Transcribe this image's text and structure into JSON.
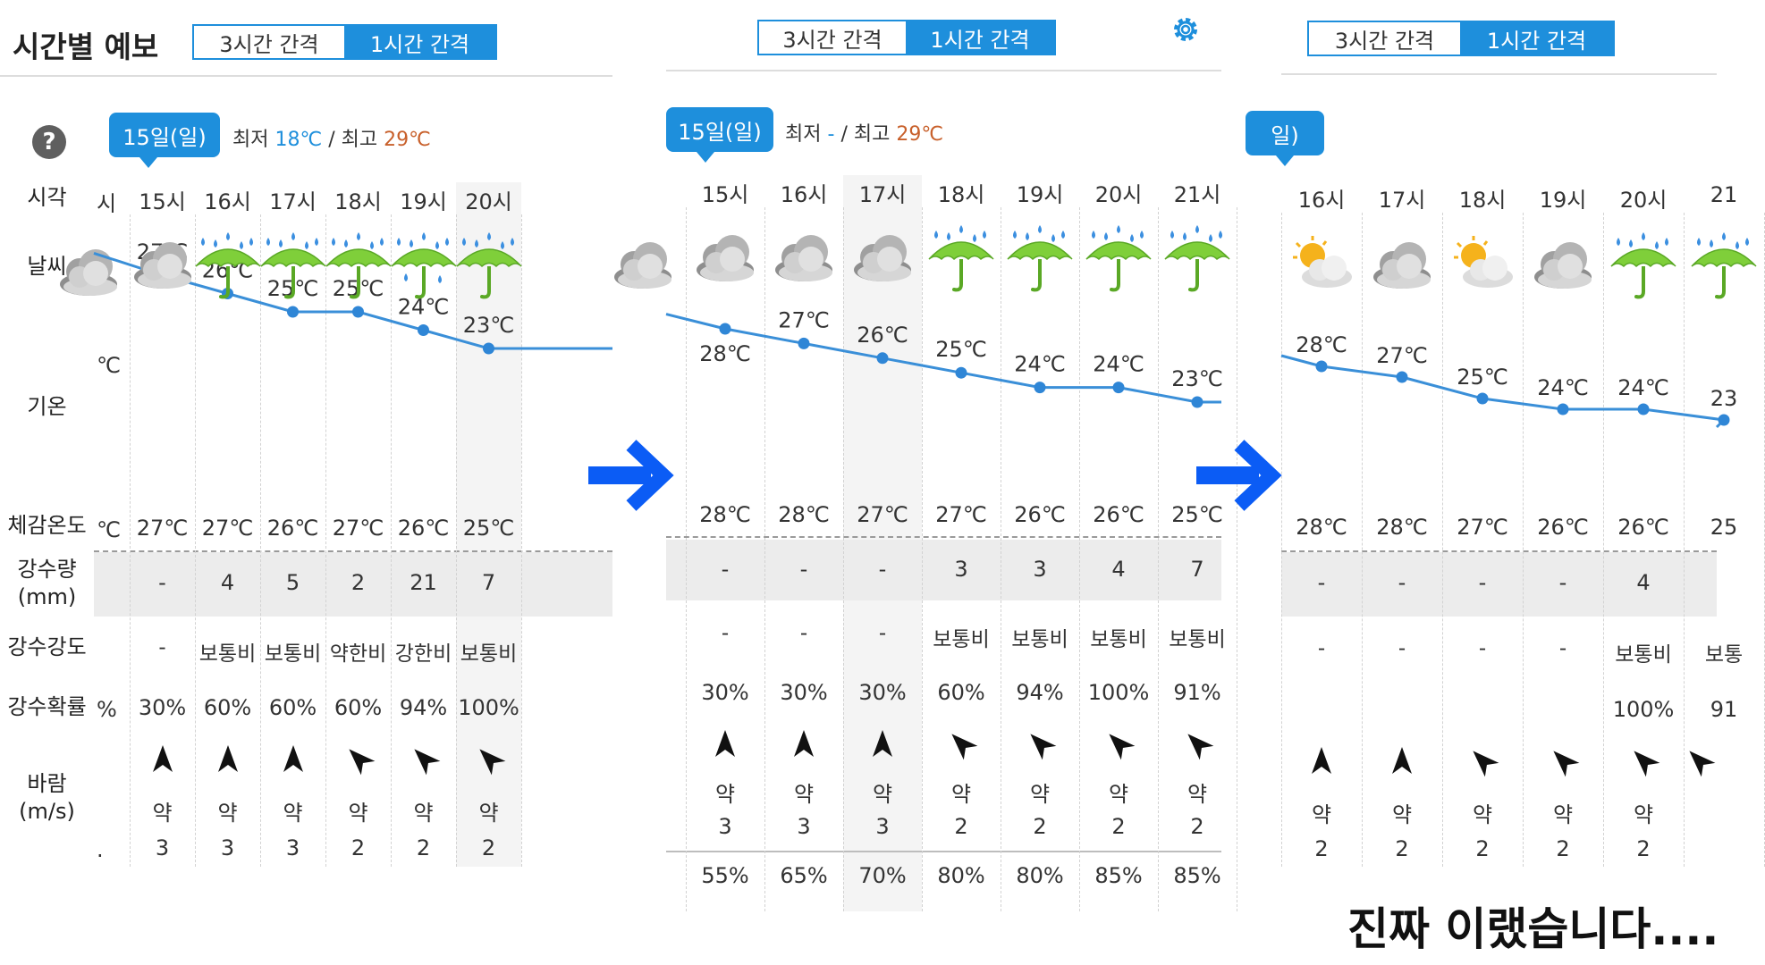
{
  "title": "시간별 예보",
  "segments": {
    "three_hour": "3시간 간격",
    "one_hour": "1시간 간격"
  },
  "labels": {
    "time": "시각",
    "weather": "날씨",
    "temperature": "기온",
    "feels_like": "체감온도",
    "precip_amount": "강수량",
    "precip_unit": "(mm)",
    "precip_intensity": "강수강도",
    "precip_probability": "강수확률",
    "wind": "바람",
    "wind_unit": "(m/s)",
    "min": "최저",
    "max": "최고",
    "slash": "/"
  },
  "caption": "진짜 이랬습니다....",
  "colors": {
    "accent": "#1e8fdc",
    "hi_temp": "#c8602b",
    "arrow": "#0b5cf5"
  },
  "panels": [
    {
      "date": "15일(일)",
      "min_temp": "18℃",
      "max_temp": "29℃",
      "edge": {
        "time": "시",
        "temp": "℃",
        "feels": "℃",
        "prob": "%",
        "wind_speed": "."
      },
      "columns": [
        {
          "time": "15시",
          "icon": "cloudy-icon",
          "temp": 27,
          "temp_label": "27℃",
          "feels": "27℃",
          "amount": "-",
          "intensity": "-",
          "prob": "30%",
          "wind_dir": "N",
          "wind_word": "약",
          "wind_speed": "3"
        },
        {
          "time": "16시",
          "icon": "rain-umbrella-icon",
          "temp": 26,
          "temp_label": "26℃",
          "feels": "27℃",
          "amount": "4",
          "intensity": "보통비",
          "prob": "60%",
          "wind_dir": "N",
          "wind_word": "약",
          "wind_speed": "3"
        },
        {
          "time": "17시",
          "icon": "rain-umbrella-icon",
          "temp": 25,
          "temp_label": "25℃",
          "feels": "26℃",
          "amount": "5",
          "intensity": "보통비",
          "prob": "60%",
          "wind_dir": "N",
          "wind_word": "약",
          "wind_speed": "3"
        },
        {
          "time": "18시",
          "icon": "rain-umbrella-icon",
          "temp": 25,
          "temp_label": "25℃",
          "feels": "27℃",
          "amount": "2",
          "intensity": "약한비",
          "prob": "60%",
          "wind_dir": "NW",
          "wind_word": "약",
          "wind_speed": "2"
        },
        {
          "time": "19시",
          "icon": "heavy-rain-umbrella-icon",
          "temp": 24,
          "temp_label": "24℃",
          "feels": "26℃",
          "amount": "21",
          "intensity": "강한비",
          "prob": "94%",
          "wind_dir": "NW",
          "wind_word": "약",
          "wind_speed": "2"
        },
        {
          "time": "20시",
          "icon": "rain-umbrella-icon",
          "temp": 23,
          "temp_label": "23℃",
          "feels": "25℃",
          "amount": "7",
          "intensity": "보통비",
          "prob": "100%",
          "wind_dir": "NW",
          "wind_word": "약",
          "wind_speed": "2"
        }
      ]
    },
    {
      "date": "15일(일)",
      "min_temp": "-",
      "max_temp": "29℃",
      "columns": [
        {
          "time": "15시",
          "icon": "cloudy-icon",
          "temp": 28,
          "temp_label": "28℃",
          "feels": "28℃",
          "amount": "-",
          "intensity": "-",
          "prob": "30%",
          "wind_dir": "N",
          "wind_word": "약",
          "wind_speed": "3",
          "humidity": "55%"
        },
        {
          "time": "16시",
          "icon": "cloudy-icon",
          "temp": 27,
          "temp_label": "27℃",
          "feels": "28℃",
          "amount": "-",
          "intensity": "-",
          "prob": "30%",
          "wind_dir": "N",
          "wind_word": "약",
          "wind_speed": "3",
          "humidity": "65%"
        },
        {
          "time": "17시",
          "icon": "cloudy-icon",
          "temp": 26,
          "temp_label": "26℃",
          "feels": "27℃",
          "amount": "-",
          "intensity": "-",
          "prob": "30%",
          "wind_dir": "N",
          "wind_word": "약",
          "wind_speed": "3",
          "humidity": "70%"
        },
        {
          "time": "18시",
          "icon": "rain-umbrella-icon",
          "temp": 25,
          "temp_label": "25℃",
          "feels": "27℃",
          "amount": "3",
          "intensity": "보통비",
          "prob": "60%",
          "wind_dir": "NW",
          "wind_word": "약",
          "wind_speed": "2",
          "humidity": "80%"
        },
        {
          "time": "19시",
          "icon": "rain-umbrella-icon",
          "temp": 24,
          "temp_label": "24℃",
          "feels": "26℃",
          "amount": "3",
          "intensity": "보통비",
          "prob": "94%",
          "wind_dir": "NW",
          "wind_word": "약",
          "wind_speed": "2",
          "humidity": "80%"
        },
        {
          "time": "20시",
          "icon": "rain-umbrella-icon",
          "temp": 24,
          "temp_label": "24℃",
          "feels": "26℃",
          "amount": "4",
          "intensity": "보통비",
          "prob": "100%",
          "wind_dir": "NW",
          "wind_word": "약",
          "wind_speed": "2",
          "humidity": "85%"
        },
        {
          "time": "21시",
          "icon": "rain-umbrella-icon",
          "temp": 23,
          "temp_label": "23℃",
          "feels": "25℃",
          "amount": "7",
          "intensity": "보통비",
          "prob": "91%",
          "wind_dir": "NW",
          "wind_word": "약",
          "wind_speed": "2",
          "humidity": "85%"
        }
      ]
    },
    {
      "date": "일)",
      "columns": [
        {
          "time": "16시",
          "icon": "partly-sunny-icon",
          "temp": 28,
          "temp_label": "28℃",
          "feels": "28℃",
          "amount": "-",
          "intensity": "-",
          "prob": "",
          "wind_dir": "N",
          "wind_word": "약",
          "wind_speed": "2"
        },
        {
          "time": "17시",
          "icon": "cloudy-icon",
          "temp": 27,
          "temp_label": "27℃",
          "feels": "28℃",
          "amount": "-",
          "intensity": "-",
          "prob": "",
          "wind_dir": "N",
          "wind_word": "약",
          "wind_speed": "2"
        },
        {
          "time": "18시",
          "icon": "partly-sunny-icon",
          "temp": 25,
          "temp_label": "25℃",
          "feels": "27℃",
          "amount": "-",
          "intensity": "-",
          "prob": "",
          "wind_dir": "NW",
          "wind_word": "약",
          "wind_speed": "2"
        },
        {
          "time": "19시",
          "icon": "cloudy-icon",
          "temp": 24,
          "temp_label": "24℃",
          "feels": "26℃",
          "amount": "-",
          "intensity": "-",
          "prob": "",
          "wind_dir": "NW",
          "wind_word": "약",
          "wind_speed": "2"
        },
        {
          "time": "20시",
          "icon": "rain-umbrella-icon",
          "temp": 24,
          "temp_label": "24℃",
          "feels": "26℃",
          "amount": "4",
          "intensity": "보통비",
          "prob": "100%",
          "wind_dir": "NW",
          "wind_word": "약",
          "wind_speed": "2"
        },
        {
          "time": "21",
          "icon": "rain-umbrella-icon",
          "temp": 23,
          "temp_label": "23",
          "feels": "25",
          "amount": "",
          "intensity": "보통",
          "prob": "91",
          "wind_dir": "NW",
          "wind_word": "",
          "wind_speed": ""
        }
      ]
    }
  ]
}
